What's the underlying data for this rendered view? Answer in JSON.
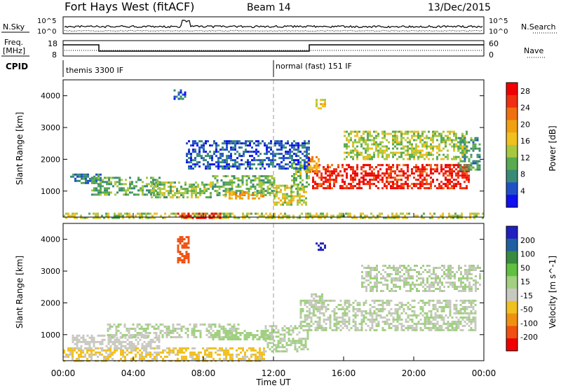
{
  "header": {
    "station": "Fort Hays West (fitACF)",
    "beam": "Beam 14",
    "date": "13/Dec/2015"
  },
  "top_panels": {
    "nsky_label": "N.Sky",
    "nsearch_label": "N.Search",
    "nsky_ticks": [
      "10^5",
      "10^0"
    ],
    "freq_label_1": "Freq.",
    "freq_label_2": "[MHz]",
    "freq_ticks": [
      "18",
      "8"
    ],
    "nave_label": "Nave",
    "nave_ticks": [
      "60",
      "0"
    ],
    "cpid_label": "CPID",
    "cpid_segments": [
      "themis 3300 IF",
      "normal (fast) 151 IF"
    ]
  },
  "chart_data": [
    {
      "type": "heatmap",
      "title": "",
      "xlabel": "Time UT",
      "ylabel": "Slant Range [km]",
      "x_unit": "hours UT",
      "xlim": [
        0,
        24
      ],
      "ylim": [
        180,
        4500
      ],
      "x_ticks": [
        "00:00",
        "04:00",
        "08:00",
        "12:00",
        "16:00",
        "20:00",
        "00:00"
      ],
      "y_ticks": [
        "1000",
        "2000",
        "3000",
        "4000"
      ],
      "colorbar": {
        "label": "Power [dB]",
        "ticks": [
          "4",
          "8",
          "12",
          "16",
          "20",
          "24",
          "28"
        ],
        "range": [
          0,
          30
        ],
        "colors": [
          "#1010f0",
          "#2050c8",
          "#3a8a78",
          "#5aaa50",
          "#a8c840",
          "#f0c020",
          "#f0a010",
          "#f07010",
          "#f03010",
          "#f00000"
        ]
      },
      "echo_regions": [
        {
          "t": [
            0.0,
            24.0
          ],
          "r": [
            180,
            320
          ],
          "level": 14
        },
        {
          "t": [
            6.5,
            9.0
          ],
          "r": [
            180,
            320
          ],
          "level": 26
        },
        {
          "t": [
            0.4,
            2.2
          ],
          "r": [
            1250,
            1550
          ],
          "level": 7
        },
        {
          "t": [
            1.6,
            5.5
          ],
          "r": [
            900,
            1450
          ],
          "level": 10
        },
        {
          "t": [
            5.0,
            8.5
          ],
          "r": [
            800,
            1300
          ],
          "level": 12
        },
        {
          "t": [
            8.5,
            12.0
          ],
          "r": [
            900,
            1500
          ],
          "level": 11
        },
        {
          "t": [
            9.2,
            11.5
          ],
          "r": [
            780,
            1000
          ],
          "level": 20
        },
        {
          "t": [
            12.0,
            13.8
          ],
          "r": [
            550,
            1200
          ],
          "level": 15
        },
        {
          "t": [
            13.0,
            14.0
          ],
          "r": [
            1100,
            1900
          ],
          "level": 12
        },
        {
          "t": [
            14.2,
            23.2
          ],
          "r": [
            1100,
            1850
          ],
          "level": 27
        },
        {
          "t": [
            13.8,
            14.6
          ],
          "r": [
            1600,
            2100
          ],
          "level": 20
        },
        {
          "t": [
            16.0,
            23.0
          ],
          "r": [
            2000,
            2900
          ],
          "level": 13
        },
        {
          "t": [
            22.5,
            23.8
          ],
          "r": [
            1700,
            2700
          ],
          "level": 9
        },
        {
          "t": [
            7.0,
            14.0
          ],
          "r": [
            1700,
            2600
          ],
          "level": 5
        },
        {
          "t": [
            14.4,
            15.0
          ],
          "r": [
            3600,
            3900
          ],
          "level": 16
        },
        {
          "t": [
            6.3,
            7.0
          ],
          "r": [
            3900,
            4200
          ],
          "level": 6
        }
      ]
    },
    {
      "type": "heatmap",
      "title": "",
      "xlabel": "Time UT",
      "ylabel": "Slant Range [km]",
      "x_unit": "hours UT",
      "xlim": [
        0,
        24
      ],
      "ylim": [
        180,
        4500
      ],
      "x_ticks": [
        "00:00",
        "04:00",
        "08:00",
        "12:00",
        "16:00",
        "20:00",
        "00:00"
      ],
      "y_ticks": [
        "1000",
        "2000",
        "3000",
        "4000"
      ],
      "colorbar": {
        "label": "Velocity [m s^-1]",
        "ticks": [
          "200",
          "100",
          "50",
          "15",
          "-15",
          "-50",
          "-100",
          "-200"
        ],
        "range": [
          -250,
          250
        ],
        "colors": [
          "#2020c0",
          "#2060a0",
          "#3a8a40",
          "#60c040",
          "#a0d080",
          "#c8c8c0",
          "#f0c020",
          "#f09010",
          "#f05010",
          "#f00000"
        ]
      },
      "echo_regions": [
        {
          "t": [
            0.0,
            11.5
          ],
          "r": [
            180,
            600
          ],
          "level": -60
        },
        {
          "t": [
            0.5,
            5.5
          ],
          "r": [
            600,
            1000
          ],
          "level": -30
        },
        {
          "t": [
            2.5,
            10.0
          ],
          "r": [
            900,
            1350
          ],
          "level": 0
        },
        {
          "t": [
            8.5,
            12.0
          ],
          "r": [
            850,
            1150
          ],
          "level": 30
        },
        {
          "t": [
            11.5,
            14.0
          ],
          "r": [
            500,
            1300
          ],
          "level": 5
        },
        {
          "t": [
            13.5,
            23.5
          ],
          "r": [
            1150,
            2100
          ],
          "level": 0
        },
        {
          "t": [
            14.0,
            14.8
          ],
          "r": [
            1700,
            2300
          ],
          "level": 0
        },
        {
          "t": [
            17.0,
            23.8
          ],
          "r": [
            2400,
            3200
          ],
          "level": 0
        },
        {
          "t": [
            14.4,
            15.0
          ],
          "r": [
            3700,
            3900
          ],
          "level": 220
        },
        {
          "t": [
            6.5,
            7.2
          ],
          "r": [
            3300,
            4100
          ],
          "level": -180
        }
      ]
    }
  ]
}
